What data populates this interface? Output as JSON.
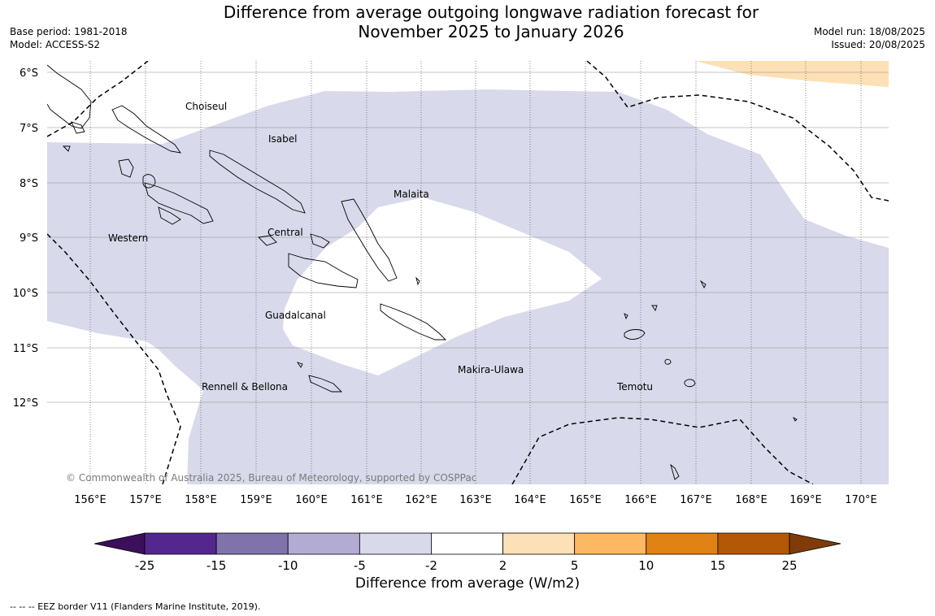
{
  "title": {
    "line1": "Difference from average outgoing longwave radiation forecast for",
    "line2": "November 2025 to January 2026"
  },
  "meta_left": {
    "base_period": "Base period: 1981-2018",
    "model": "Model: ACCESS-S2"
  },
  "meta_right": {
    "model_run": "Model run: 18/08/2025",
    "issued": "Issued: 20/08/2025"
  },
  "copyright": "© Commonwealth of Australia 2025, Bureau of Meteorology, supported by COSPPac",
  "map": {
    "lat_ticks": [
      "6°S",
      "7°S",
      "8°S",
      "9°S",
      "10°S",
      "11°S",
      "12°S"
    ],
    "lon_ticks": [
      "156°E",
      "157°E",
      "158°E",
      "159°E",
      "160°E",
      "161°E",
      "162°E",
      "163°E",
      "164°E",
      "165°E",
      "166°E",
      "167°E",
      "168°E",
      "169°E",
      "170°E"
    ],
    "places": {
      "choiseul": "Choiseul",
      "isabel": "Isabel",
      "malaita": "Malaita",
      "western": "Western",
      "central": "Central",
      "guadalcanal": "Guadalcanal",
      "makira": "Makira-Ulawa",
      "rennell": "Rennell & Bellona",
      "temotu": "Temotu"
    }
  },
  "colorbar": {
    "ticks": [
      "-25",
      "-15",
      "-10",
      "-5",
      "-2",
      "2",
      "5",
      "10",
      "15",
      "25"
    ],
    "colors": [
      "#3c0f5c",
      "#54278f",
      "#8073ac",
      "#b2abd2",
      "#d8daeb",
      "#ffffff",
      "#fee0b6",
      "#fdb863",
      "#e08214",
      "#b35806",
      "#7f3b08"
    ],
    "label": "Difference from average (W/m2)"
  },
  "footer": "-- -- -- EEZ border V11 (Flanders Marine Institute, 2019)."
}
